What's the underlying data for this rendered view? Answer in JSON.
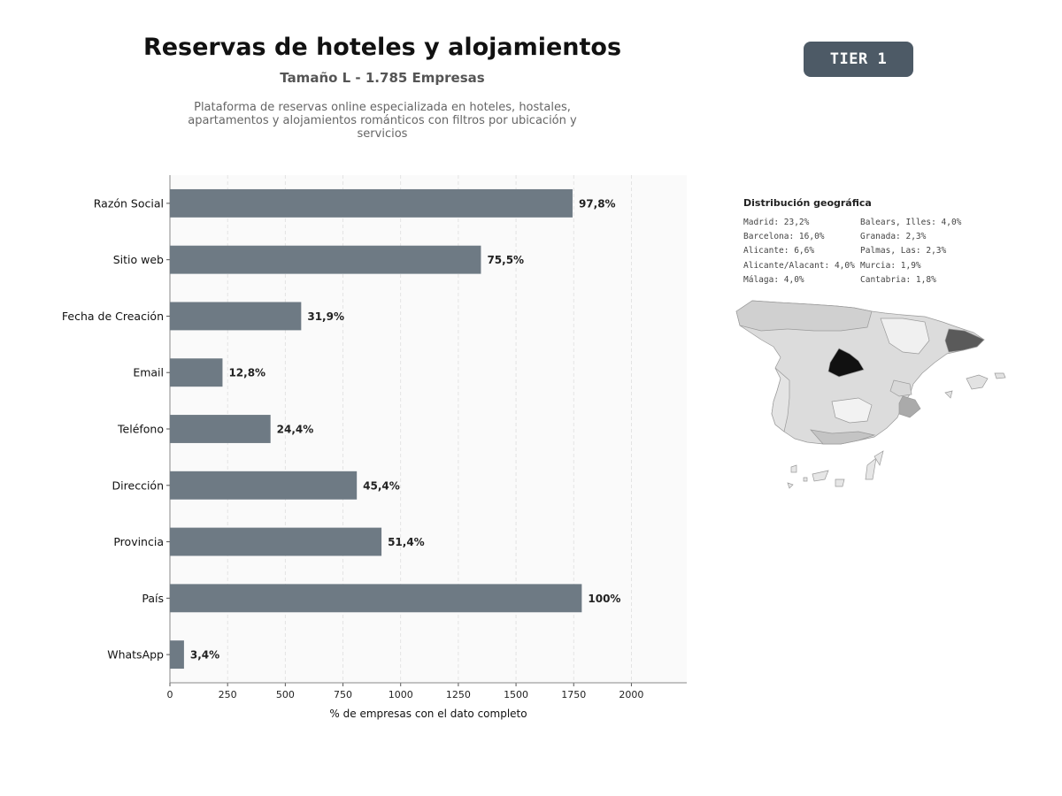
{
  "header": {
    "title": "Reservas de hoteles y alojamientos",
    "subtitle": "Tamaño L - 1.785 Empresas",
    "description": "Plataforma de reservas online especializada en hoteles, hostales, apartamentos y alojamientos románticos con filtros por ubicación y servicios"
  },
  "badge": {
    "label": "TIER 1"
  },
  "colors": {
    "bar": "#6e7a84",
    "badge": "#4d5a66",
    "plot_bg": "#fafafa"
  },
  "chart_data": {
    "type": "bar",
    "orientation": "horizontal",
    "categories": [
      "Razón Social",
      "Sitio web",
      "Fecha de Creación",
      "Email",
      "Teléfono",
      "Dirección",
      "Provincia",
      "País",
      "WhatsApp"
    ],
    "values": [
      1745,
      1348,
      569,
      228,
      436,
      810,
      917,
      1785,
      61
    ],
    "value_labels": [
      "97,8%",
      "75,5%",
      "31,9%",
      "12,8%",
      "24,4%",
      "45,4%",
      "51,4%",
      "100%",
      "3,4%"
    ],
    "xlabel": "% de empresas con el dato completo",
    "xlim": [
      0,
      2240
    ],
    "xticks": [
      0,
      250,
      500,
      750,
      1000,
      1250,
      1500,
      1750,
      2000
    ],
    "grid": "vertical dashed"
  },
  "geo": {
    "title": "Distribución geográfica",
    "left_column": [
      "Madrid: 23,2%",
      "Barcelona: 16,0%",
      "Alicante: 6,6%",
      "Alicante/Alacant: 4,0%",
      "Málaga: 4,0%"
    ],
    "right_column": [
      "Balears, Illes: 4,0%",
      "Granada: 2,3%",
      "Palmas, Las: 2,3%",
      "Murcia: 1,9%",
      "Cantabria: 1,8%"
    ]
  }
}
